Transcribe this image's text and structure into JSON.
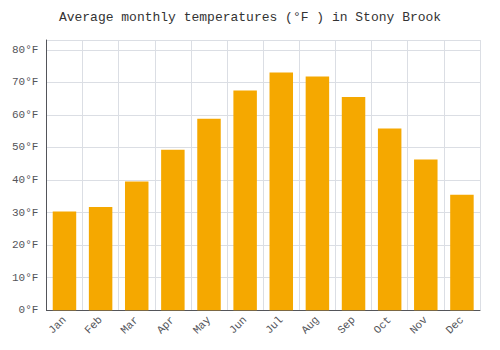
{
  "chart_data": {
    "type": "bar",
    "title": "Average monthly temperatures (°F ) in Stony Brook",
    "categories": [
      "Jan",
      "Feb",
      "Mar",
      "Apr",
      "May",
      "Jun",
      "Jul",
      "Aug",
      "Sep",
      "Oct",
      "Nov",
      "Dec"
    ],
    "values": [
      30.3,
      31.7,
      39.5,
      49.3,
      58.8,
      67.5,
      73.0,
      71.8,
      65.5,
      55.8,
      46.3,
      35.5
    ],
    "color": "#F5A800",
    "ylim": [
      0,
      83
    ],
    "yticks": [
      {
        "value": 0,
        "label": "0°F"
      },
      {
        "value": 10,
        "label": "10°F"
      },
      {
        "value": 20,
        "label": "20°F"
      },
      {
        "value": 30,
        "label": "30°F"
      },
      {
        "value": 40,
        "label": "40°F"
      },
      {
        "value": 50,
        "label": "50°F"
      },
      {
        "value": 60,
        "label": "60°F"
      },
      {
        "value": 70,
        "label": "70°F"
      },
      {
        "value": 80,
        "label": "80°F"
      }
    ],
    "grid": true
  }
}
